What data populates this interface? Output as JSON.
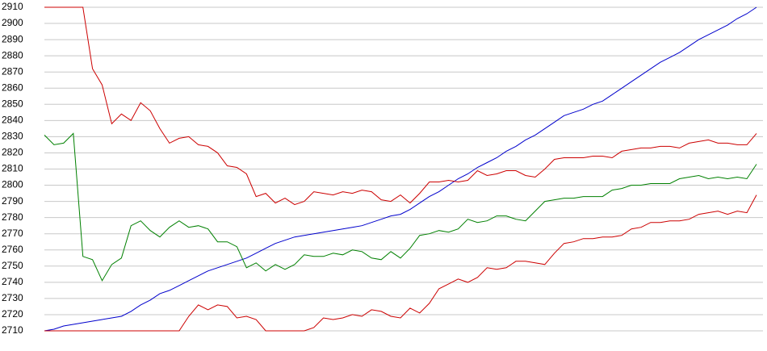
{
  "chart_data": {
    "type": "line",
    "categories": [
      null,
      null,
      null,
      null,
      null,
      null,
      null,
      null,
      null,
      null,
      null,
      null,
      null,
      null,
      null,
      null,
      null,
      null,
      null,
      null,
      null,
      null,
      null,
      null,
      null,
      null,
      null,
      null,
      null,
      null,
      null,
      null,
      null,
      null,
      null,
      null,
      null,
      null,
      null,
      null,
      null,
      null,
      null,
      null,
      null,
      null,
      null,
      null,
      null,
      null,
      null,
      null,
      null,
      null,
      null,
      null,
      null,
      null,
      null,
      null,
      null,
      null,
      null,
      null,
      null,
      null,
      null,
      null,
      null,
      null,
      null,
      null,
      null,
      null,
      null
    ],
    "series": [
      {
        "color": "#0000cc",
        "values": [
          2710,
          2711,
          2713,
          2714,
          2715,
          2716,
          2717,
          2718,
          2719,
          2722,
          2726,
          2729,
          2733,
          2735,
          2738,
          2741,
          2744,
          2747,
          2749,
          2751,
          2753,
          2755,
          2758,
          2761,
          2764,
          2766,
          2768,
          2769,
          2770,
          2771,
          2772,
          2773,
          2774,
          2775,
          2777,
          2779,
          2781,
          2782,
          2785,
          2789,
          2793,
          2796,
          2800,
          2804,
          2807,
          2811,
          2814,
          2817,
          2821,
          2824,
          2828,
          2831,
          2835,
          2839,
          2843,
          2845,
          2847,
          2850,
          2852,
          2856,
          2860,
          2864,
          2868,
          2872,
          2876,
          2879,
          2882,
          2886,
          2890,
          2893,
          2896,
          2899,
          2903,
          2906,
          2910
        ]
      },
      {
        "color": "#cc0000",
        "values": [
          2910,
          2910,
          2910,
          2910,
          2910,
          2872,
          2862,
          2838,
          2844,
          2840,
          2851,
          2846,
          2835,
          2826,
          2829,
          2830,
          2825,
          2824,
          2820,
          2812,
          2811,
          2807,
          2793,
          2795,
          2789,
          2792,
          2788,
          2790,
          2796,
          2795,
          2794,
          2796,
          2795,
          2797,
          2796,
          2791,
          2790,
          2794,
          2789,
          2795,
          2802,
          2802,
          2803,
          2802,
          2803,
          2809,
          2806,
          2807,
          2809,
          2809,
          2806,
          2805,
          2810,
          2816,
          2817,
          2817,
          2817,
          2818,
          2818,
          2817,
          2821,
          2822,
          2823,
          2823,
          2824,
          2824,
          2823,
          2826,
          2827,
          2828,
          2826,
          2826,
          2825,
          2825,
          2832
        ]
      },
      {
        "color": "#008000",
        "values": [
          2831,
          2825,
          2826,
          2832,
          2756,
          2754,
          2741,
          2751,
          2755,
          2775,
          2778,
          2772,
          2768,
          2774,
          2778,
          2774,
          2775,
          2773,
          2765,
          2765,
          2762,
          2749,
          2752,
          2747,
          2751,
          2748,
          2751,
          2757,
          2756,
          2756,
          2758,
          2757,
          2760,
          2759,
          2755,
          2754,
          2759,
          2755,
          2761,
          2769,
          2770,
          2772,
          2771,
          2773,
          2779,
          2777,
          2778,
          2781,
          2781,
          2779,
          2778,
          2784,
          2790,
          2791,
          2792,
          2792,
          2793,
          2793,
          2793,
          2797,
          2798,
          2800,
          2800,
          2801,
          2801,
          2801,
          2804,
          2805,
          2806,
          2804,
          2805,
          2804,
          2805,
          2804,
          2813
        ]
      },
      {
        "color": "#cc0000",
        "values": [
          2710,
          2710,
          2710,
          2710,
          2710,
          2710,
          2710,
          2710,
          2710,
          2710,
          2710,
          2710,
          2710,
          2710,
          2710,
          2719,
          2726,
          2723,
          2726,
          2725,
          2718,
          2719,
          2717,
          2710,
          2710,
          2710,
          2710,
          2710,
          2712,
          2718,
          2717,
          2718,
          2720,
          2719,
          2723,
          2722,
          2719,
          2718,
          2724,
          2721,
          2727,
          2736,
          2739,
          2742,
          2740,
          2743,
          2749,
          2748,
          2749,
          2753,
          2753,
          2752,
          2751,
          2758,
          2764,
          2765,
          2767,
          2767,
          2768,
          2768,
          2769,
          2773,
          2774,
          2777,
          2777,
          2778,
          2778,
          2779,
          2782,
          2783,
          2784,
          2782,
          2784,
          2783,
          2794
        ]
      }
    ],
    "ylim": [
      2710,
      2910
    ],
    "yticks": [
      2710,
      2720,
      2730,
      2740,
      2750,
      2760,
      2770,
      2780,
      2790,
      2800,
      2810,
      2820,
      2830,
      2840,
      2850,
      2860,
      2870,
      2880,
      2890,
      2900,
      2910
    ],
    "grid": true
  }
}
